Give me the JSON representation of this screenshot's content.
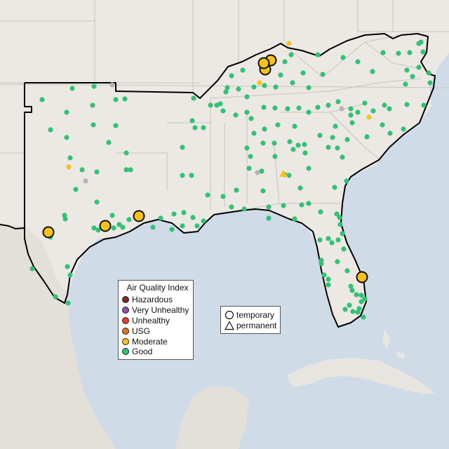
{
  "map": {
    "colors": {
      "ocean": "#cfdbe6",
      "land": "#ece9e5",
      "land_south": "#e4e1dc",
      "border": "#c8c4c0",
      "region_outline": "#000000"
    }
  },
  "legend": {
    "title": "Air Quality Index",
    "categories": [
      {
        "label": "Hazardous",
        "color": "#7e2a22"
      },
      {
        "label": "Very Unhealthy",
        "color": "#8f4fb0"
      },
      {
        "label": "Unhealthy",
        "color": "#e53c2a"
      },
      {
        "label": "USG",
        "color": "#e5731c"
      },
      {
        "label": "Moderate",
        "color": "#f5c21b"
      },
      {
        "label": "Good",
        "color": "#33c275"
      }
    ]
  },
  "type_legend": {
    "items": [
      {
        "label": "temporary",
        "icon": "circle-icon"
      },
      {
        "label": "permanent",
        "icon": "triangle-icon"
      }
    ]
  },
  "monitors": {
    "good_color": "#33c275",
    "moderate_color": "#f5c21b",
    "unavailable_color": "#b5b5b5"
  }
}
